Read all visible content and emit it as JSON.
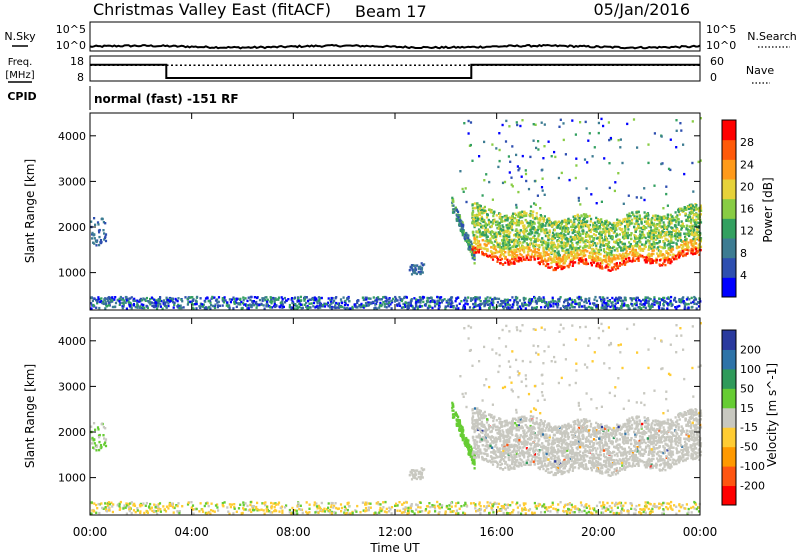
{
  "header": {
    "title": "Christmas Valley East (fitACF)",
    "beam": "Beam 17",
    "date": "05/Jan/2016"
  },
  "labels": {
    "nsky": "N.Sky",
    "nsearch": "N.Search",
    "freq": "Freq.",
    "freq_unit": "[MHz]",
    "nave": "Nave",
    "cpid_label": "CPID",
    "cpid_value": "normal (fast) -151 RF",
    "xlabel": "Time UT"
  },
  "chart_data": [
    {
      "type": "line",
      "name": "noise-panel",
      "xlim": [
        0,
        24
      ],
      "left_axis": {
        "label": "N.Sky",
        "ticks": [
          "10^5",
          "10^0"
        ]
      },
      "right_axis": {
        "label": "N.Search",
        "ticks": [
          "10^5",
          "10^0"
        ]
      },
      "sky_level_fraction": 0.15
    },
    {
      "type": "line",
      "name": "freq-nave-panel",
      "xlim": [
        0,
        24
      ],
      "left_axis": {
        "label": "Freq. [MHz]",
        "ylim": [
          8,
          18
        ],
        "ticks": [
          18,
          8
        ]
      },
      "right_axis": {
        "label": "Nave",
        "ylim": [
          0,
          60
        ],
        "ticks": [
          60,
          0
        ]
      },
      "freq": {
        "x": [
          0,
          3,
          3,
          15,
          15,
          24
        ],
        "y": [
          14.5,
          14.5,
          9.2,
          9.2,
          14.5,
          14.5
        ]
      },
      "nave": {
        "x": [
          0,
          24
        ],
        "y": [
          38,
          38
        ]
      }
    },
    {
      "type": "heatmap",
      "name": "power-panel",
      "xlim": [
        0,
        24
      ],
      "ylim": [
        180,
        4500
      ],
      "ylabel": "Slant Range [km]",
      "yticks": [
        1000,
        2000,
        3000,
        4000
      ],
      "colorbar": {
        "label": "Power [dB]",
        "ticks": [
          4,
          8,
          12,
          16,
          20,
          24,
          28
        ],
        "range": [
          0,
          32
        ],
        "colors": [
          "#0000ff",
          "#2e4fb0",
          "#3d7c92",
          "#33a060",
          "#88cc44",
          "#e6d23a",
          "#ff9a1a",
          "#ff5a0a",
          "#ff0000"
        ]
      }
    },
    {
      "type": "heatmap",
      "name": "velocity-panel",
      "xlim": [
        0,
        24
      ],
      "ylim": [
        180,
        4500
      ],
      "ylabel": "Slant Range [km]",
      "yticks": [
        1000,
        2000,
        3000,
        4000
      ],
      "colorbar": {
        "label": "Velocity [m s^-1]",
        "ticks": [
          200,
          100,
          50,
          15,
          -15,
          -50,
          -100,
          -200
        ],
        "colors": [
          "#2a3a9e",
          "#2e73a8",
          "#2f9a5a",
          "#66cc33",
          "#c8c8c0",
          "#ffcc33",
          "#ff9900",
          "#ff5511",
          "#ff0000"
        ]
      }
    }
  ],
  "time_ticks": [
    "00:00",
    "04:00",
    "08:00",
    "12:00",
    "16:00",
    "20:00",
    "00:00"
  ]
}
